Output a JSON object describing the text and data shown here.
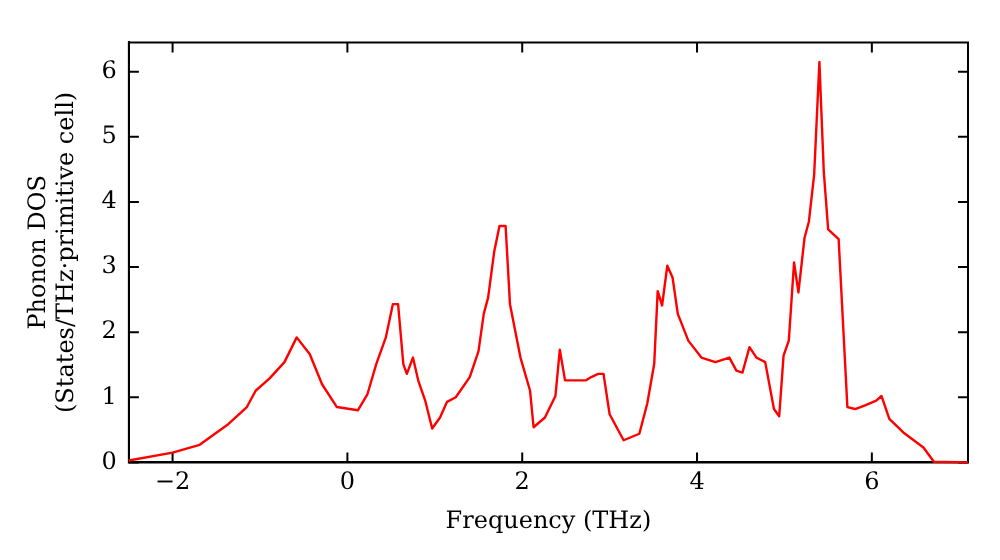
{
  "chart_data": {
    "type": "line",
    "xlabel": "Frequency (THz)",
    "ylabel": "Phonon DOS\n(States/THz·primitive cell)",
    "xlim": [
      -2.5,
      7.1
    ],
    "ylim": [
      0,
      6.45
    ],
    "xticks": [
      -2,
      0,
      2,
      4,
      6
    ],
    "yticks": [
      0,
      1,
      2,
      3,
      4,
      5,
      6
    ],
    "grid": false,
    "legend": false,
    "marker": "none",
    "line_style": "solid",
    "series": [
      {
        "color": "#ff0000",
        "x": [
          -2.5,
          -2.0,
          -1.69,
          -1.36,
          -1.15,
          -1.05,
          -0.89,
          -0.72,
          -0.58,
          -0.43,
          -0.29,
          -0.12,
          0.12,
          0.23,
          0.33,
          0.44,
          0.52,
          0.58,
          0.64,
          0.68,
          0.75,
          0.81,
          0.89,
          0.97,
          1.06,
          1.14,
          1.24,
          1.4,
          1.5,
          1.56,
          1.61,
          1.68,
          1.74,
          1.81,
          1.86,
          1.98,
          2.09,
          2.13,
          2.26,
          2.38,
          2.43,
          2.49,
          2.73,
          2.79,
          2.87,
          2.93,
          3.0,
          3.16,
          3.34,
          3.43,
          3.51,
          3.55,
          3.6,
          3.66,
          3.72,
          3.78,
          3.9,
          4.05,
          4.21,
          4.37,
          4.45,
          4.52,
          4.6,
          4.68,
          4.78,
          4.88,
          4.94,
          4.99,
          5.05,
          5.11,
          5.16,
          5.23,
          5.28,
          5.34,
          5.4,
          5.45,
          5.5,
          5.62,
          5.72,
          5.81,
          5.93,
          6.05,
          6.11,
          6.2,
          6.36,
          6.59,
          6.71,
          7.1
        ],
        "values": [
          0.03,
          0.15,
          0.27,
          0.59,
          0.85,
          1.1,
          1.29,
          1.54,
          1.92,
          1.66,
          1.2,
          0.85,
          0.8,
          1.05,
          1.51,
          1.92,
          2.43,
          2.43,
          1.51,
          1.36,
          1.61,
          1.26,
          0.95,
          0.52,
          0.69,
          0.93,
          1.0,
          1.31,
          1.71,
          2.28,
          2.53,
          3.24,
          3.63,
          3.63,
          2.43,
          1.61,
          1.1,
          0.54,
          0.69,
          1.02,
          1.73,
          1.26,
          1.26,
          1.31,
          1.36,
          1.36,
          0.74,
          0.34,
          0.44,
          0.9,
          1.51,
          2.63,
          2.41,
          3.02,
          2.84,
          2.28,
          1.87,
          1.61,
          1.54,
          1.61,
          1.41,
          1.38,
          1.77,
          1.61,
          1.54,
          0.82,
          0.71,
          1.64,
          1.87,
          3.07,
          2.61,
          3.45,
          3.7,
          4.42,
          6.15,
          4.47,
          3.58,
          3.43,
          0.85,
          0.82,
          0.88,
          0.95,
          1.02,
          0.67,
          0.46,
          0.23,
          0.01,
          0.0
        ]
      }
    ]
  }
}
